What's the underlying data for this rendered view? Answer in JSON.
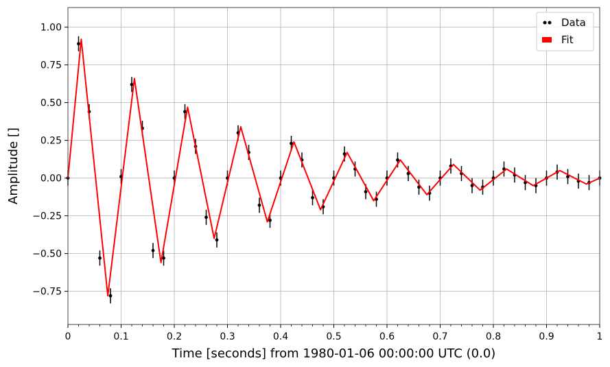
{
  "chart_data": {
    "type": "scatter",
    "title": "",
    "xlabel": "Time [seconds] from 1980-01-06 00:00:00 UTC (0.0)",
    "ylabel": "Amplitude []",
    "xlim": [
      0,
      1
    ],
    "ylim": [
      -0.97,
      1.13
    ],
    "x_ticks": [
      0,
      0.1,
      0.2,
      0.3,
      0.4,
      0.5,
      0.6,
      0.7,
      0.8,
      0.9,
      1
    ],
    "x_tick_labels": [
      "0",
      "0.1",
      "0.2",
      "0.3",
      "0.4",
      "0.5",
      "0.6",
      "0.7",
      "0.8",
      "0.9",
      "1"
    ],
    "y_ticks": [
      -0.75,
      -0.5,
      -0.25,
      0,
      0.25,
      0.5,
      0.75,
      1.0
    ],
    "y_tick_labels": [
      "−0.75",
      "−0.50",
      "−0.25",
      "0.00",
      "0.25",
      "0.50",
      "0.75",
      "1.00"
    ],
    "grid": true,
    "legend_position": "top-right",
    "legend": [
      {
        "label": "Data",
        "marker": "points",
        "color": "#000000"
      },
      {
        "label": "Fit",
        "marker": "patch",
        "color": "#ff0000"
      }
    ],
    "model": {
      "form": "damped sine",
      "amplitude": 1.0,
      "frequency_hz": 10,
      "decay_time_s": 0.3
    },
    "series": [
      {
        "name": "Data",
        "style": "points with error bars",
        "color": "#000000",
        "x": [
          0.0,
          0.02,
          0.04,
          0.06,
          0.08,
          0.1,
          0.12,
          0.14,
          0.16,
          0.18,
          0.2,
          0.22,
          0.24,
          0.26,
          0.28,
          0.3,
          0.32,
          0.34,
          0.36,
          0.38,
          0.4,
          0.42,
          0.44,
          0.46,
          0.48,
          0.5,
          0.52,
          0.54,
          0.56,
          0.58,
          0.6,
          0.62,
          0.64,
          0.66,
          0.68,
          0.7,
          0.72,
          0.74,
          0.76,
          0.78,
          0.8,
          0.82,
          0.84,
          0.86,
          0.88,
          0.9,
          0.92,
          0.94,
          0.96,
          0.98,
          1.0
        ],
        "y": [
          0.0,
          0.89,
          0.44,
          -0.53,
          -0.78,
          0.01,
          0.62,
          0.33,
          -0.48,
          -0.53,
          0.0,
          0.44,
          0.21,
          -0.26,
          -0.41,
          0.0,
          0.3,
          0.17,
          -0.18,
          -0.28,
          0.0,
          0.23,
          0.12,
          -0.13,
          -0.19,
          0.0,
          0.16,
          0.06,
          -0.09,
          -0.14,
          0.0,
          0.12,
          0.03,
          -0.06,
          -0.1,
          0.0,
          0.08,
          0.03,
          -0.05,
          -0.06,
          0.0,
          0.06,
          0.02,
          -0.03,
          -0.05,
          0.0,
          0.04,
          0.01,
          -0.02,
          -0.03,
          0.0
        ],
        "error": 0.05
      },
      {
        "name": "Fit",
        "style": "line",
        "color": "#ff0000",
        "x": [
          0.0,
          0.025,
          0.075,
          0.125,
          0.175,
          0.225,
          0.275,
          0.325,
          0.375,
          0.425,
          0.475,
          0.525,
          0.575,
          0.625,
          0.675,
          0.725,
          0.775,
          0.825,
          0.875,
          0.925,
          0.975,
          1.0
        ],
        "y": [
          0.0,
          0.92,
          -0.78,
          0.66,
          -0.56,
          0.47,
          -0.4,
          0.34,
          -0.29,
          0.24,
          -0.21,
          0.17,
          -0.15,
          0.12,
          -0.11,
          0.09,
          -0.08,
          0.06,
          -0.05,
          0.05,
          -0.04,
          0.0
        ]
      }
    ]
  }
}
